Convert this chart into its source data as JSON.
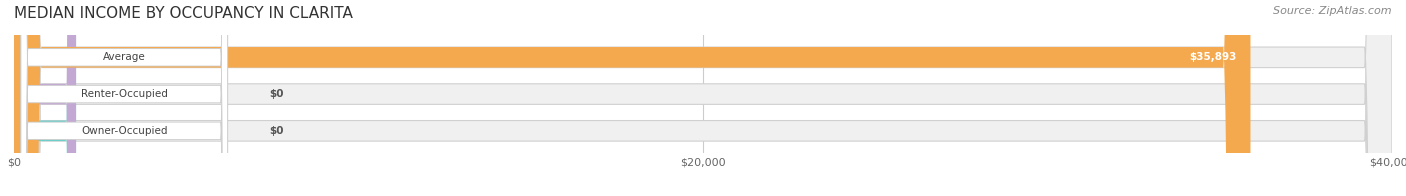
{
  "title": "MEDIAN INCOME BY OCCUPANCY IN CLARITA",
  "source_text": "Source: ZipAtlas.com",
  "categories": [
    "Owner-Occupied",
    "Renter-Occupied",
    "Average"
  ],
  "values": [
    0,
    0,
    35893
  ],
  "bar_colors": [
    "#6ecfca",
    "#c4a8d4",
    "#f5a94e"
  ],
  "label_colors": [
    "#6ecfca",
    "#c4a8d4",
    "#f5a94e"
  ],
  "bar_bg_color": "#f0f0f0",
  "bar_label_inside": [
    "$0",
    "$0",
    "$35,893"
  ],
  "xlim": [
    0,
    40000
  ],
  "xticks": [
    0,
    20000,
    40000
  ],
  "xticklabels": [
    "$0",
    "$20,000",
    "$40,000"
  ],
  "title_fontsize": 11,
  "source_fontsize": 8,
  "bar_height": 0.55,
  "background_color": "#ffffff",
  "grid_color": "#cccccc"
}
